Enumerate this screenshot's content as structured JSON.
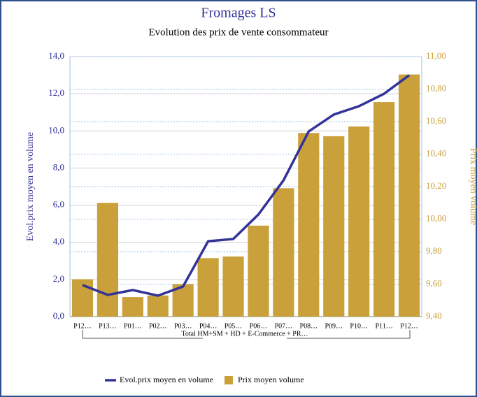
{
  "chart_data": {
    "type": "combo",
    "title": "Fromages LS",
    "subtitle": "Evolution des prix de vente consommateur",
    "ylabel": "Evol.prix moyen en volume",
    "y2label": "Prix moyen volume",
    "group_label": "Total HM+SM + HD + E-Commerce + PR…",
    "categories": [
      "P12…",
      "P13…",
      "P01…",
      "P02…",
      "P03…",
      "P04…",
      "P05…",
      "P06…",
      "P07…",
      "P08…",
      "P09…",
      "P10…",
      "P11…",
      "P12…"
    ],
    "series": [
      {
        "name": "Evol.prix moyen en volume",
        "type": "line",
        "axis": "y",
        "color": "#333399",
        "values": [
          1.7,
          1.17,
          1.43,
          1.13,
          1.62,
          4.06,
          4.18,
          5.5,
          7.34,
          9.97,
          10.88,
          11.33,
          12.0,
          13.0
        ]
      },
      {
        "name": "Prix moyen volume",
        "type": "bar",
        "axis": "y2",
        "color": "#c9a03a",
        "values": [
          9.63,
          10.1,
          9.52,
          9.53,
          9.6,
          9.76,
          9.77,
          9.96,
          10.19,
          10.53,
          10.51,
          10.57,
          10.72,
          10.89
        ]
      }
    ],
    "ylim": [
      0,
      14
    ],
    "yticks": [
      {
        "value": 0,
        "label": "0,0"
      },
      {
        "value": 2,
        "label": "2,0"
      },
      {
        "value": 4,
        "label": "4,0"
      },
      {
        "value": 6,
        "label": "6,0"
      },
      {
        "value": 8,
        "label": "8,0"
      },
      {
        "value": 10,
        "label": "10,0"
      },
      {
        "value": 12,
        "label": "12,0"
      },
      {
        "value": 14,
        "label": "14,0"
      }
    ],
    "y2lim": [
      9.4,
      11.0
    ],
    "y2ticks": [
      {
        "value": 9.4,
        "label": "9,40"
      },
      {
        "value": 9.6,
        "label": "9,60"
      },
      {
        "value": 9.8,
        "label": "9,80"
      },
      {
        "value": 10.0,
        "label": "10,00"
      },
      {
        "value": 10.2,
        "label": "10,20"
      },
      {
        "value": 10.4,
        "label": "10,40"
      },
      {
        "value": 10.6,
        "label": "10,60"
      },
      {
        "value": 10.8,
        "label": "10,80"
      },
      {
        "value": 11.0,
        "label": "11,00"
      }
    ],
    "grid": true,
    "legend": "bottom"
  }
}
